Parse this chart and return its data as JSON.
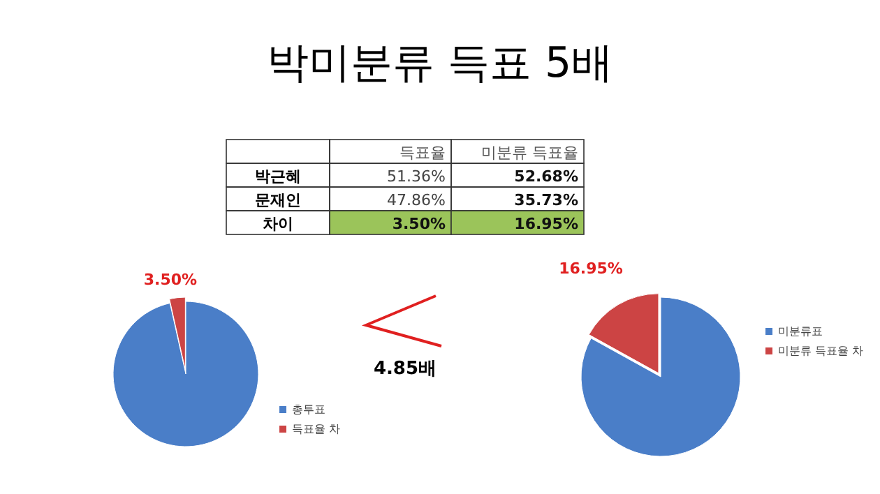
{
  "chart_data": [
    {
      "type": "other",
      "title": "박미분류 득표 5배",
      "categories": [
        "득표율",
        "미분류 득표율"
      ],
      "y_categories": [
        "박근혜",
        "문재인",
        "차이"
      ],
      "cell_labels": [
        [
          "51.36%",
          "52.68%"
        ],
        [
          "47.86%",
          "35.73%"
        ],
        [
          "3.50%",
          "16.95%"
        ]
      ],
      "annotations": [
        "4.85배"
      ]
    },
    {
      "type": "pie",
      "categories": [
        "총투표",
        "득표율 차"
      ],
      "values": [
        96.5,
        3.5
      ],
      "colors": [
        "#4a7ec8",
        "#cc4444"
      ],
      "value_labels": [
        null,
        "3.50%"
      ],
      "legend": "right"
    },
    {
      "type": "pie",
      "categories": [
        "미분류표",
        "미분류 득표율 차"
      ],
      "values": [
        83.05,
        16.95
      ],
      "colors": [
        "#4a7ec8",
        "#cc4444"
      ],
      "value_labels": [
        null,
        "16.95%"
      ],
      "legend": "right"
    }
  ]
}
